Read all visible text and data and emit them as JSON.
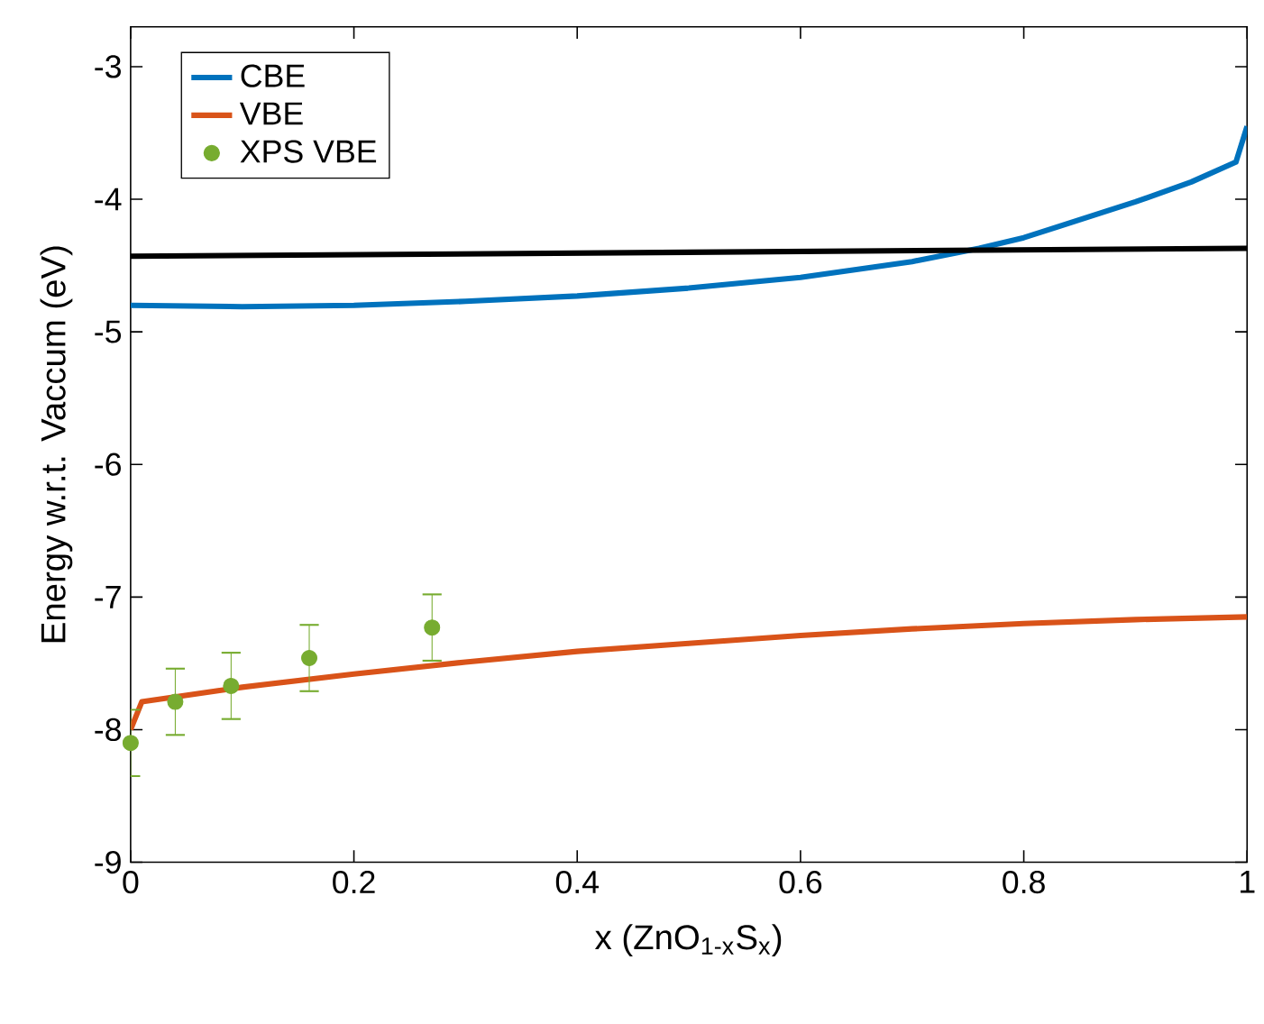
{
  "chart_data": {
    "type": "line",
    "xlabel": "x (ZnO$_{1-x}$S$_{x}$)",
    "ylabel": "Energy w.r.t. Vaccum (eV)",
    "xlim": [
      0,
      1
    ],
    "ylim": [
      -9,
      -2.7
    ],
    "xticks": [
      0,
      0.2,
      0.4,
      0.6,
      0.8,
      1
    ],
    "yticks": [
      -9,
      -8,
      -7,
      -6,
      -5,
      -4,
      -3
    ],
    "legend": "top left",
    "series": [
      {
        "name": "CBE",
        "color": "#0072bd",
        "x": [
          0,
          0.1,
          0.2,
          0.3,
          0.4,
          0.5,
          0.6,
          0.7,
          0.76,
          0.8,
          0.9,
          0.95,
          0.99,
          1
        ],
        "values": [
          -4.8,
          -4.81,
          -4.8,
          -4.77,
          -4.73,
          -4.67,
          -4.59,
          -4.47,
          -4.37,
          -4.29,
          -4.02,
          -3.87,
          -3.72,
          -3.45
        ]
      },
      {
        "name": "VBE",
        "color": "#d95319",
        "x": [
          0,
          0.01,
          0.1,
          0.2,
          0.3,
          0.4,
          0.5,
          0.6,
          0.7,
          0.8,
          0.9,
          1
        ],
        "values": [
          -8.0,
          -7.79,
          -7.68,
          -7.58,
          -7.49,
          -7.41,
          -7.35,
          -7.29,
          -7.24,
          -7.2,
          -7.17,
          -7.15
        ]
      },
      {
        "name": "XPS VBE",
        "type": "scatter",
        "color": "#77ac30",
        "x": [
          0,
          0.04,
          0.09,
          0.16,
          0.27
        ],
        "values": [
          -8.1,
          -7.79,
          -7.67,
          -7.46,
          -7.23
        ],
        "errors": [
          0.25,
          0.25,
          0.25,
          0.25,
          0.25
        ]
      },
      {
        "color": "#000000",
        "x": [
          0,
          1
        ],
        "values": [
          -4.43,
          -4.37
        ]
      }
    ]
  }
}
